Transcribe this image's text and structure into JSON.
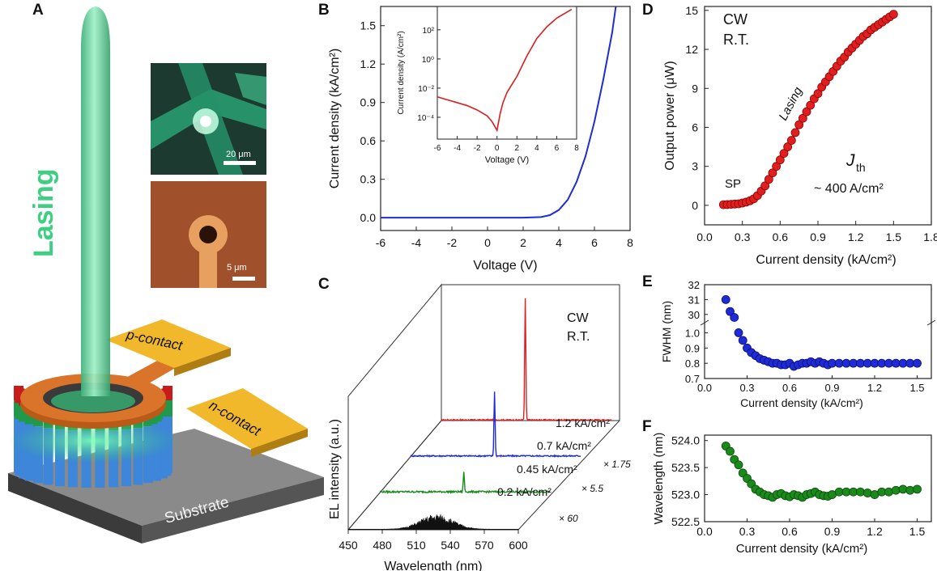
{
  "panel_letters": {
    "a": "A",
    "b": "B",
    "c": "C",
    "d": "D",
    "e": "E",
    "f": "F"
  },
  "panel_a": {
    "lasing_label": "Lasing",
    "p_contact": "p-contact",
    "n_contact": "n-contact",
    "substrate": "Substrate",
    "scale_top": "20 μm",
    "scale_bottom": "5 μm",
    "colors": {
      "beam": "#5fd19a",
      "ring": "#d9742a",
      "contact": "#f0b82a",
      "substrate": "#6b6b6b"
    }
  },
  "chart_data": [
    {
      "id": "B",
      "type": "line",
      "xlabel": "Voltage (V)",
      "ylabel": "Current density (kA/cm²)",
      "xlim": [
        -6,
        8
      ],
      "ylim": [
        -0.1,
        1.65
      ],
      "xticks": [
        "-6",
        "-4",
        "-2",
        "0",
        "2",
        "4",
        "6",
        "8"
      ],
      "yticks": [
        "0.0",
        "0.3",
        "0.6",
        "0.9",
        "1.2",
        "1.5"
      ],
      "series": [
        {
          "color": "#1f2bd6",
          "x": [
            -6,
            -4,
            -2,
            0,
            2,
            3,
            3.5,
            4,
            4.5,
            5,
            5.5,
            6,
            6.5,
            7,
            7.2
          ],
          "y": [
            0,
            0,
            0,
            0,
            0,
            0.005,
            0.02,
            0.06,
            0.14,
            0.28,
            0.48,
            0.75,
            1.08,
            1.45,
            1.65
          ]
        }
      ],
      "inset": {
        "type": "line",
        "scale": "log",
        "xlabel": "Voltage (V)",
        "ylabel": "Current density (A/cm²)",
        "xlim": [
          -6,
          8
        ],
        "ylim_exp": [
          -5.5,
          3.6
        ],
        "xticks": [
          "-6",
          "-4",
          "-2",
          "0",
          "2",
          "4",
          "6",
          "8"
        ],
        "yticks": [
          "10⁻⁴",
          "10⁻²",
          "10⁰",
          "10²"
        ],
        "series": [
          {
            "color": "#d62020",
            "x": [
              -6,
              -5,
              -4,
              -3,
              -2,
              -1,
              -0.5,
              0,
              0.3,
              0.6,
              1,
              2,
              3,
              4,
              5,
              6,
              7,
              7.5
            ],
            "log_y": [
              -2.6,
              -2.8,
              -3.0,
              -3.2,
              -3.5,
              -3.9,
              -4.3,
              -4.9,
              -3.8,
              -3.0,
              -2.3,
              -1.2,
              0.2,
              1.4,
              2.2,
              2.8,
              3.2,
              3.4
            ]
          }
        ]
      }
    },
    {
      "id": "D",
      "type": "scatter",
      "xlabel": "Current density (kA/cm²)",
      "ylabel": "Output power (μW)",
      "xlim": [
        0,
        1.8
      ],
      "ylim": [
        -1.5,
        15.3
      ],
      "xticks": [
        "0.0",
        "0.3",
        "0.6",
        "0.9",
        "1.2",
        "1.5",
        "1.8"
      ],
      "yticks": [
        "0",
        "3",
        "6",
        "9",
        "12",
        "15"
      ],
      "annotations": {
        "cw": "CW",
        "rt": "R.T.",
        "sp": "SP",
        "lasing": "Lasing",
        "jth": "J",
        "jth_sub": "th",
        "jth_value": "~ 400 A/cm²"
      },
      "series": [
        {
          "color": "#e02020",
          "x": [
            0.15,
            0.18,
            0.21,
            0.24,
            0.27,
            0.3,
            0.33,
            0.36,
            0.39,
            0.42,
            0.45,
            0.48,
            0.51,
            0.54,
            0.57,
            0.6,
            0.63,
            0.66,
            0.69,
            0.72,
            0.75,
            0.78,
            0.81,
            0.84,
            0.87,
            0.9,
            0.93,
            0.96,
            0.99,
            1.02,
            1.05,
            1.08,
            1.11,
            1.14,
            1.17,
            1.2,
            1.23,
            1.26,
            1.29,
            1.32,
            1.35,
            1.38,
            1.41,
            1.44,
            1.47,
            1.5
          ],
          "y": [
            0.05,
            0.06,
            0.08,
            0.1,
            0.12,
            0.18,
            0.25,
            0.35,
            0.5,
            0.75,
            1.1,
            1.5,
            2.0,
            2.5,
            3.0,
            3.5,
            4.0,
            4.5,
            5.0,
            5.6,
            6.2,
            6.7,
            7.2,
            7.7,
            8.2,
            8.6,
            9.1,
            9.5,
            9.9,
            10.3,
            10.7,
            11.1,
            11.4,
            11.8,
            12.1,
            12.4,
            12.7,
            13.0,
            13.2,
            13.5,
            13.7,
            13.9,
            14.1,
            14.3,
            14.5,
            14.7
          ]
        }
      ]
    },
    {
      "id": "C",
      "type": "line",
      "xlabel": "Wavelength (nm)",
      "ylabel": "EL intensity (a.u.)",
      "xlim": [
        450,
        600
      ],
      "xticks": [
        "450",
        "480",
        "510",
        "540",
        "570",
        "600"
      ],
      "annotations": {
        "cw": "CW",
        "rt": "R.T."
      },
      "series": [
        {
          "name": "1.2 kA/cm²",
          "multiplier": "",
          "color": "#e02020",
          "peak_nm": 524,
          "peak_height": 1.0,
          "noise": 0.01
        },
        {
          "name": "0.7 kA/cm²",
          "multiplier": "× 1.75",
          "color": "#1f2bd6",
          "peak_nm": 524,
          "peak_height": 0.72,
          "noise": 0.015
        },
        {
          "name": "0.45 kA/cm²",
          "multiplier": "× 5.5",
          "color": "#1a8a1a",
          "peak_nm": 524,
          "peak_height": 0.35,
          "noise": 0.03
        },
        {
          "name": "0.2 kA/cm²",
          "multiplier": "× 60",
          "color": "#111111",
          "peak_nm": 528,
          "peak_height": 0.2,
          "noise": 0.06,
          "broad": true
        }
      ]
    },
    {
      "id": "E",
      "type": "scatter",
      "xlabel": "Current density (kA/cm²)",
      "ylabel": "FWHM (nm)",
      "xlim": [
        0,
        1.6
      ],
      "broken_axis": true,
      "upper_ylim": [
        29.5,
        32
      ],
      "lower_ylim": [
        0.7,
        1.05
      ],
      "xticks": [
        "0.0",
        "0.3",
        "0.6",
        "0.9",
        "1.2",
        "1.5"
      ],
      "yticks_upper": [
        "30",
        "31",
        "32"
      ],
      "yticks_lower": [
        "0.7",
        "0.8",
        "0.9",
        "1.0"
      ],
      "series": [
        {
          "color": "#1f2bd6",
          "x": [
            0.15,
            0.18,
            0.21,
            0.24,
            0.27,
            0.3,
            0.33,
            0.36,
            0.39,
            0.42,
            0.45,
            0.48,
            0.51,
            0.54,
            0.57,
            0.6,
            0.63,
            0.66,
            0.69,
            0.72,
            0.75,
            0.78,
            0.81,
            0.84,
            0.87,
            0.9,
            0.95,
            1.0,
            1.05,
            1.1,
            1.15,
            1.2,
            1.25,
            1.3,
            1.35,
            1.4,
            1.45,
            1.5
          ],
          "y": [
            31.0,
            30.2,
            29.8,
            1.0,
            0.95,
            0.9,
            0.87,
            0.85,
            0.83,
            0.82,
            0.81,
            0.8,
            0.8,
            0.79,
            0.79,
            0.8,
            0.78,
            0.79,
            0.8,
            0.8,
            0.81,
            0.8,
            0.81,
            0.8,
            0.79,
            0.8,
            0.8,
            0.8,
            0.8,
            0.8,
            0.8,
            0.8,
            0.8,
            0.8,
            0.8,
            0.8,
            0.8,
            0.8
          ]
        }
      ]
    },
    {
      "id": "F",
      "type": "scatter",
      "xlabel": "Current density (kA/cm²)",
      "ylabel": "Wavelength (nm)",
      "xlim": [
        0,
        1.6
      ],
      "ylim": [
        522.5,
        524.1
      ],
      "xticks": [
        "0.0",
        "0.3",
        "0.6",
        "0.9",
        "1.2",
        "1.5"
      ],
      "yticks": [
        "522.5",
        "523.0",
        "523.5",
        "524.0"
      ],
      "series": [
        {
          "color": "#1a8a1a",
          "x": [
            0.15,
            0.18,
            0.21,
            0.24,
            0.27,
            0.3,
            0.33,
            0.36,
            0.39,
            0.42,
            0.45,
            0.48,
            0.51,
            0.54,
            0.57,
            0.6,
            0.63,
            0.66,
            0.69,
            0.72,
            0.75,
            0.78,
            0.81,
            0.84,
            0.87,
            0.9,
            0.95,
            1.0,
            1.05,
            1.1,
            1.15,
            1.2,
            1.25,
            1.3,
            1.35,
            1.4,
            1.45,
            1.5
          ],
          "y": [
            523.9,
            523.8,
            523.65,
            523.55,
            523.4,
            523.3,
            523.2,
            523.1,
            523.05,
            523.0,
            522.98,
            522.95,
            523.0,
            523.02,
            522.98,
            522.96,
            523.0,
            522.98,
            522.95,
            523.0,
            523.02,
            523.05,
            523.0,
            522.98,
            522.97,
            523.0,
            523.05,
            523.05,
            523.05,
            523.05,
            523.03,
            523.0,
            523.05,
            523.05,
            523.08,
            523.1,
            523.08,
            523.1
          ]
        }
      ]
    }
  ]
}
